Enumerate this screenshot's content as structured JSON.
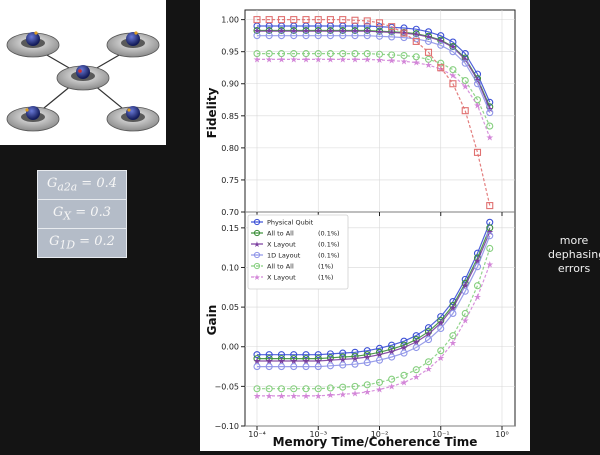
{
  "params": [
    {
      "symbol": "G",
      "sub": "a2a",
      "value": "0.4"
    },
    {
      "symbol": "G",
      "sub": "X",
      "value": "0.3"
    },
    {
      "symbol": "G",
      "sub": "1D",
      "value": "0.2"
    }
  ],
  "side_note": [
    "more",
    "dephasing",
    "errors"
  ],
  "colors": {
    "Physical Qubit": "#3b4fd6",
    "All to All (0.1%)": "#3c8f3a",
    "X Layout (0.1%)": "#7a3d9e",
    "1D Layout (0.1%)": "#8f95e8",
    "All to All (1%)": "#86cf7f",
    "X Layout (1%)": "#d386d8",
    "1D Layout (1%)": "#e07070"
  },
  "chart_data": [
    {
      "type": "line",
      "ylabel": "Fidelity",
      "xscale": "log",
      "ylim": [
        0.7,
        1.015
      ],
      "yticks": [
        "0.70",
        "0.75",
        "0.80",
        "0.85",
        "0.90",
        "0.95",
        "1.00"
      ],
      "x": [
        0.0001,
        0.000158,
        0.000251,
        0.000398,
        0.000631,
        0.001,
        0.00158,
        0.00251,
        0.00398,
        0.00631,
        0.01,
        0.0158,
        0.0251,
        0.0398,
        0.0631,
        0.1,
        0.158,
        0.251,
        0.398,
        0.631
      ],
      "series": [
        {
          "name": "Physical Qubit",
          "values": [
            0.99,
            0.99,
            0.99,
            0.99,
            0.99,
            0.99,
            0.99,
            0.99,
            0.99,
            0.99,
            0.989,
            0.988,
            0.987,
            0.985,
            0.981,
            0.975,
            0.965,
            0.947,
            0.915,
            0.871
          ]
        },
        {
          "name": "All to All (0.1%)",
          "values": [
            0.983,
            0.983,
            0.983,
            0.983,
            0.983,
            0.983,
            0.983,
            0.983,
            0.983,
            0.983,
            0.982,
            0.981,
            0.98,
            0.978,
            0.974,
            0.968,
            0.958,
            0.94,
            0.908,
            0.864
          ]
        },
        {
          "name": "X Layout (0.1%)",
          "values": [
            0.982,
            0.982,
            0.982,
            0.982,
            0.982,
            0.982,
            0.982,
            0.982,
            0.982,
            0.982,
            0.981,
            0.98,
            0.979,
            0.977,
            0.973,
            0.967,
            0.957,
            0.938,
            0.906,
            0.861
          ]
        },
        {
          "name": "1D Layout (0.1%)",
          "values": [
            0.975,
            0.975,
            0.975,
            0.975,
            0.975,
            0.975,
            0.975,
            0.975,
            0.975,
            0.975,
            0.974,
            0.973,
            0.972,
            0.97,
            0.966,
            0.96,
            0.95,
            0.932,
            0.9,
            0.855
          ]
        },
        {
          "name": "All to All (1%)",
          "values": [
            0.947,
            0.947,
            0.947,
            0.947,
            0.947,
            0.947,
            0.947,
            0.947,
            0.947,
            0.947,
            0.946,
            0.945,
            0.944,
            0.942,
            0.938,
            0.932,
            0.922,
            0.905,
            0.875,
            0.834
          ]
        },
        {
          "name": "X Layout (1%)",
          "values": [
            0.938,
            0.938,
            0.938,
            0.938,
            0.938,
            0.938,
            0.938,
            0.938,
            0.938,
            0.938,
            0.937,
            0.936,
            0.935,
            0.933,
            0.929,
            0.923,
            0.913,
            0.896,
            0.866,
            0.816
          ]
        },
        {
          "name": "",
          "values": [
            1.0,
            1.0,
            1.0,
            1.0,
            1.0,
            1.0,
            1.0,
            1.0,
            0.999,
            0.998,
            0.995,
            0.989,
            0.979,
            0.966,
            0.949,
            0.925,
            0.9,
            0.858,
            0.793,
            0.71
          ]
        }
      ]
    },
    {
      "type": "line",
      "ylabel": "Gain",
      "xlabel": "Memory Time/Coherence Time",
      "xscale": "log",
      "ylim": [
        -0.1,
        0.17
      ],
      "yticks": [
        "−0.10",
        "−0.05",
        "0.00",
        "0.05",
        "0.10",
        "0.15"
      ],
      "xticks": [
        "10⁻⁴",
        "10⁻³",
        "10⁻²",
        "10⁻¹",
        "10⁰"
      ],
      "x": [
        0.0001,
        0.000158,
        0.000251,
        0.000398,
        0.000631,
        0.001,
        0.00158,
        0.00251,
        0.00398,
        0.00631,
        0.01,
        0.0158,
        0.0251,
        0.0398,
        0.0631,
        0.1,
        0.158,
        0.251,
        0.398,
        0.631
      ],
      "legend": {
        "position": "upper-left",
        "entries": [
          {
            "label": "Physical Qubit",
            "rate": ""
          },
          {
            "label": "All to All",
            "rate": "(0.1%)"
          },
          {
            "label": "X Layout",
            "rate": "(0.1%)"
          },
          {
            "label": "1D Layout",
            "rate": "(0.1%)"
          },
          {
            "label": "All to All",
            "rate": "(1%)"
          },
          {
            "label": "X Layout",
            "rate": "(1%)"
          }
        ]
      },
      "series": [
        {
          "name": "Physical Qubit",
          "values": [
            -0.01,
            -0.01,
            -0.01,
            -0.01,
            -0.01,
            -0.01,
            -0.009,
            -0.008,
            -0.007,
            -0.005,
            -0.002,
            0.002,
            0.007,
            0.014,
            0.024,
            0.038,
            0.057,
            0.085,
            0.118,
            0.157
          ]
        },
        {
          "name": "All to All (0.1%)",
          "values": [
            -0.015,
            -0.015,
            -0.015,
            -0.015,
            -0.015,
            -0.015,
            -0.014,
            -0.013,
            -0.012,
            -0.01,
            -0.007,
            -0.003,
            0.002,
            0.009,
            0.019,
            0.033,
            0.052,
            0.08,
            0.112,
            0.15
          ]
        },
        {
          "name": "X Layout (0.1%)",
          "values": [
            -0.018,
            -0.018,
            -0.018,
            -0.018,
            -0.018,
            -0.018,
            -0.017,
            -0.016,
            -0.015,
            -0.013,
            -0.01,
            -0.006,
            -0.001,
            0.006,
            0.016,
            0.03,
            0.049,
            0.077,
            0.108,
            0.145
          ]
        },
        {
          "name": "1D Layout (0.1%)",
          "values": [
            -0.025,
            -0.025,
            -0.025,
            -0.025,
            -0.025,
            -0.025,
            -0.024,
            -0.023,
            -0.022,
            -0.02,
            -0.017,
            -0.013,
            -0.008,
            -0.001,
            0.009,
            0.023,
            0.042,
            0.07,
            0.101,
            0.14
          ]
        },
        {
          "name": "All to All (1%)",
          "values": [
            -0.053,
            -0.053,
            -0.053,
            -0.053,
            -0.053,
            -0.053,
            -0.052,
            -0.051,
            -0.05,
            -0.048,
            -0.045,
            -0.041,
            -0.036,
            -0.029,
            -0.019,
            -0.005,
            0.014,
            0.042,
            0.077,
            0.124
          ]
        },
        {
          "name": "X Layout (1%)",
          "values": [
            -0.062,
            -0.062,
            -0.062,
            -0.062,
            -0.062,
            -0.062,
            -0.061,
            -0.06,
            -0.059,
            -0.057,
            -0.054,
            -0.05,
            -0.045,
            -0.038,
            -0.028,
            -0.014,
            0.005,
            0.033,
            0.063,
            0.104
          ]
        }
      ]
    }
  ]
}
